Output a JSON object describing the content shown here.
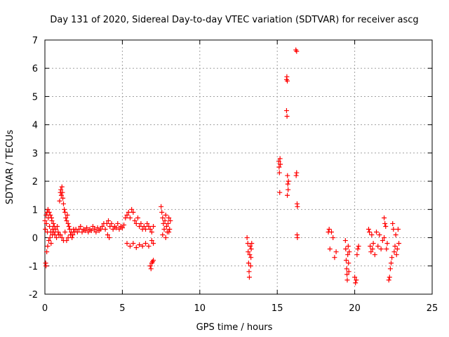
{
  "chart_data": {
    "type": "scatter",
    "title": "Day 131 of 2020, Sidereal Day-to-day VTEC variation (SDTVAR) for receiver ascg",
    "xlabel": "GPS time / hours",
    "ylabel": "SDTVAR / TECUs",
    "xlim": [
      0,
      25
    ],
    "ylim": [
      -2,
      7
    ],
    "xticks": [
      "0",
      "5",
      "10",
      "15",
      "20",
      "25"
    ],
    "yticks": [
      "-2",
      "-1",
      "0",
      "1",
      "2",
      "3",
      "4",
      "5",
      "6",
      "7"
    ],
    "grid": true,
    "marker": "plus",
    "color": "#ff0000",
    "series": [
      {
        "name": "SDTVAR",
        "points": [
          [
            0.0,
            0.6
          ],
          [
            0.03,
            0.3
          ],
          [
            0.05,
            -0.9
          ],
          [
            0.07,
            -1.0
          ],
          [
            0.08,
            0.8
          ],
          [
            0.1,
            0.5
          ],
          [
            0.12,
            -0.5
          ],
          [
            0.14,
            0.9
          ],
          [
            0.16,
            0.2
          ],
          [
            0.18,
            -0.3
          ],
          [
            0.2,
            1.0
          ],
          [
            0.22,
            0.7
          ],
          [
            0.25,
            -0.1
          ],
          [
            0.28,
            0.9
          ],
          [
            0.3,
            0.4
          ],
          [
            0.33,
            0.0
          ],
          [
            0.35,
            0.8
          ],
          [
            0.38,
            0.2
          ],
          [
            0.4,
            -0.2
          ],
          [
            0.43,
            0.7
          ],
          [
            0.45,
            0.6
          ],
          [
            0.48,
            0.1
          ],
          [
            0.5,
            0.3
          ],
          [
            0.55,
            0.5
          ],
          [
            0.58,
            0.2
          ],
          [
            0.6,
            0.4
          ],
          [
            0.65,
            0.1
          ],
          [
            0.7,
            0.3
          ],
          [
            0.75,
            0.0
          ],
          [
            0.8,
            0.4
          ],
          [
            0.85,
            0.2
          ],
          [
            0.9,
            0.1
          ],
          [
            0.95,
            1.3
          ],
          [
            1.0,
            1.6
          ],
          [
            1.03,
            1.7
          ],
          [
            1.06,
            1.5
          ],
          [
            1.1,
            1.8
          ],
          [
            1.13,
            1.6
          ],
          [
            1.16,
            1.4
          ],
          [
            1.2,
            1.2
          ],
          [
            1.25,
            1.0
          ],
          [
            1.3,
            0.9
          ],
          [
            1.35,
            0.7
          ],
          [
            1.4,
            0.6
          ],
          [
            1.45,
            0.8
          ],
          [
            1.5,
            0.5
          ],
          [
            1.55,
            0.4
          ],
          [
            1.6,
            0.3
          ],
          [
            1.65,
            0.1
          ],
          [
            1.7,
            0.2
          ],
          [
            1.75,
            0.0
          ],
          [
            1.8,
            0.1
          ],
          [
            1.85,
            0.3
          ],
          [
            1.9,
            0.2
          ],
          [
            1.0,
            0.1
          ],
          [
            1.1,
            0.0
          ],
          [
            1.2,
            -0.1
          ],
          [
            1.3,
            0.2
          ],
          [
            1.4,
            -0.1
          ],
          [
            1.5,
            0.0
          ],
          [
            2.0,
            0.3
          ],
          [
            2.1,
            0.2
          ],
          [
            2.2,
            0.3
          ],
          [
            2.3,
            0.4
          ],
          [
            2.4,
            0.2
          ],
          [
            2.5,
            0.3
          ],
          [
            2.6,
            0.25
          ],
          [
            2.7,
            0.35
          ],
          [
            2.8,
            0.2
          ],
          [
            2.9,
            0.3
          ],
          [
            3.0,
            0.25
          ],
          [
            3.1,
            0.4
          ],
          [
            3.2,
            0.3
          ],
          [
            3.3,
            0.2
          ],
          [
            3.4,
            0.35
          ],
          [
            3.5,
            0.25
          ],
          [
            3.6,
            0.3
          ],
          [
            3.7,
            0.4
          ],
          [
            3.8,
            0.5
          ],
          [
            3.9,
            0.3
          ],
          [
            4.0,
            0.5
          ],
          [
            4.05,
            0.1
          ],
          [
            4.1,
            0.6
          ],
          [
            4.15,
            0.0
          ],
          [
            4.2,
            0.4
          ],
          [
            4.3,
            0.5
          ],
          [
            4.4,
            0.3
          ],
          [
            4.5,
            0.4
          ],
          [
            4.6,
            0.35
          ],
          [
            4.7,
            0.5
          ],
          [
            4.8,
            0.3
          ],
          [
            4.9,
            0.4
          ],
          [
            5.0,
            0.35
          ],
          [
            5.1,
            0.45
          ],
          [
            5.2,
            0.7
          ],
          [
            5.3,
            0.8
          ],
          [
            5.4,
            0.9
          ],
          [
            5.5,
            0.7
          ],
          [
            5.6,
            1.0
          ],
          [
            5.7,
            0.9
          ],
          [
            5.8,
            0.6
          ],
          [
            5.9,
            0.5
          ],
          [
            6.0,
            0.7
          ],
          [
            6.1,
            0.4
          ],
          [
            6.2,
            0.5
          ],
          [
            6.3,
            0.3
          ],
          [
            6.4,
            0.4
          ],
          [
            6.5,
            0.3
          ],
          [
            6.6,
            0.5
          ],
          [
            6.7,
            0.4
          ],
          [
            6.8,
            0.3
          ],
          [
            6.9,
            0.2
          ],
          [
            7.0,
            0.4
          ],
          [
            5.3,
            -0.2
          ],
          [
            5.5,
            -0.3
          ],
          [
            5.7,
            -0.2
          ],
          [
            5.9,
            -0.35
          ],
          [
            6.1,
            -0.25
          ],
          [
            6.3,
            -0.3
          ],
          [
            6.5,
            -0.2
          ],
          [
            6.7,
            -0.3
          ],
          [
            6.9,
            -0.1
          ],
          [
            7.0,
            -0.2
          ],
          [
            6.8,
            -1.0
          ],
          [
            6.85,
            -1.1
          ],
          [
            6.9,
            -0.9
          ],
          [
            6.95,
            -0.85
          ],
          [
            7.0,
            -0.8
          ],
          [
            7.5,
            1.1
          ],
          [
            7.55,
            0.9
          ],
          [
            7.6,
            0.7
          ],
          [
            7.65,
            0.5
          ],
          [
            7.7,
            0.3
          ],
          [
            7.75,
            0.6
          ],
          [
            7.8,
            0.8
          ],
          [
            7.85,
            0.4
          ],
          [
            7.9,
            0.2
          ],
          [
            7.95,
            0.5
          ],
          [
            8.0,
            0.7
          ],
          [
            8.05,
            0.3
          ],
          [
            8.1,
            0.6
          ],
          [
            7.6,
            0.1
          ],
          [
            7.8,
            0.0
          ],
          [
            8.0,
            0.2
          ],
          [
            13.05,
            0.0
          ],
          [
            13.1,
            -0.2
          ],
          [
            13.12,
            -0.5
          ],
          [
            13.15,
            -0.9
          ],
          [
            13.18,
            -1.2
          ],
          [
            13.2,
            -1.4
          ],
          [
            13.22,
            -0.6
          ],
          [
            13.25,
            -0.3
          ],
          [
            13.28,
            -1.0
          ],
          [
            13.3,
            -0.7
          ],
          [
            13.32,
            -0.4
          ],
          [
            13.35,
            -0.2
          ],
          [
            15.1,
            2.7
          ],
          [
            15.12,
            2.5
          ],
          [
            15.14,
            2.3
          ],
          [
            15.16,
            1.6
          ],
          [
            15.18,
            2.8
          ],
          [
            15.2,
            2.6
          ],
          [
            15.6,
            5.6
          ],
          [
            15.62,
            5.7
          ],
          [
            15.65,
            5.55
          ],
          [
            15.6,
            4.5
          ],
          [
            15.63,
            4.3
          ],
          [
            15.66,
            2.2
          ],
          [
            15.68,
            1.9
          ],
          [
            15.7,
            1.7
          ],
          [
            15.72,
            2.0
          ],
          [
            15.65,
            1.5
          ],
          [
            16.2,
            6.65
          ],
          [
            16.25,
            6.6
          ],
          [
            16.22,
            2.2
          ],
          [
            16.25,
            2.3
          ],
          [
            16.28,
            1.2
          ],
          [
            16.3,
            1.1
          ],
          [
            16.28,
            0.1
          ],
          [
            16.3,
            0.0
          ],
          [
            18.3,
            0.2
          ],
          [
            18.35,
            0.3
          ],
          [
            18.4,
            -0.4
          ],
          [
            18.5,
            0.2
          ],
          [
            18.6,
            0.0
          ],
          [
            18.7,
            -0.7
          ],
          [
            18.8,
            -0.5
          ],
          [
            19.4,
            -0.1
          ],
          [
            19.42,
            -0.4
          ],
          [
            19.45,
            -0.8
          ],
          [
            19.48,
            -1.1
          ],
          [
            19.5,
            -1.3
          ],
          [
            19.52,
            -1.5
          ],
          [
            19.55,
            -0.6
          ],
          [
            19.58,
            -0.3
          ],
          [
            19.6,
            -0.9
          ],
          [
            19.62,
            -1.2
          ],
          [
            19.65,
            -0.5
          ],
          [
            20.0,
            -1.4
          ],
          [
            20.05,
            -1.6
          ],
          [
            20.1,
            -1.5
          ],
          [
            20.15,
            -0.6
          ],
          [
            20.2,
            -0.4
          ],
          [
            20.25,
            -0.3
          ],
          [
            20.9,
            0.3
          ],
          [
            20.95,
            0.2
          ],
          [
            21.0,
            -0.3
          ],
          [
            21.05,
            -0.5
          ],
          [
            21.1,
            0.1
          ],
          [
            21.15,
            -0.4
          ],
          [
            21.2,
            -0.2
          ],
          [
            21.3,
            -0.6
          ],
          [
            21.4,
            0.2
          ],
          [
            21.5,
            -0.3
          ],
          [
            21.6,
            0.1
          ],
          [
            21.7,
            -0.4
          ],
          [
            21.8,
            -0.1
          ],
          [
            21.9,
            0.0
          ],
          [
            22.0,
            0.4
          ],
          [
            22.05,
            -0.4
          ],
          [
            22.1,
            -0.2
          ],
          [
            22.2,
            -1.5
          ],
          [
            22.25,
            -1.4
          ],
          [
            22.3,
            -1.1
          ],
          [
            22.35,
            -0.9
          ],
          [
            22.4,
            -0.7
          ],
          [
            22.45,
            0.5
          ],
          [
            22.5,
            0.3
          ],
          [
            22.55,
            -0.5
          ],
          [
            22.6,
            -0.3
          ],
          [
            22.65,
            0.1
          ],
          [
            22.7,
            -0.6
          ],
          [
            22.75,
            -0.4
          ],
          [
            22.8,
            0.3
          ],
          [
            22.85,
            -0.2
          ],
          [
            21.9,
            0.7
          ],
          [
            21.95,
            0.5
          ]
        ]
      }
    ]
  }
}
